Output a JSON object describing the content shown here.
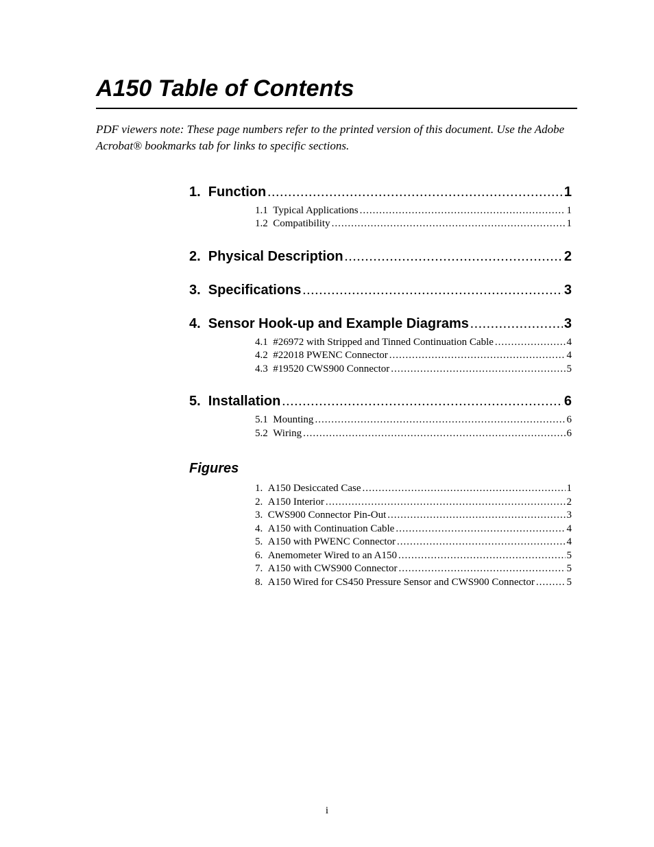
{
  "title": "A150 Table of Contents",
  "note": "PDF viewers note:  These page numbers refer to the printed version of this document.  Use the Adobe Acrobat® bookmarks tab for links to specific sections.",
  "sections": [
    {
      "num": "1.",
      "title": "Function",
      "page": "1",
      "subs": [
        {
          "num": "1.1",
          "title": "Typical Applications",
          "page": "1"
        },
        {
          "num": "1.2",
          "title": "Compatibility",
          "page": "1"
        }
      ]
    },
    {
      "num": "2.",
      "title": "Physical Description",
      "page": "2",
      "subs": []
    },
    {
      "num": "3.",
      "title": "Specifications",
      "page": "3",
      "subs": []
    },
    {
      "num": "4.",
      "title": "Sensor Hook-up and Example Diagrams",
      "page": "3",
      "subs": [
        {
          "num": "4.1",
          "title": "#26972 with Stripped and Tinned Continuation Cable",
          "page": "4"
        },
        {
          "num": "4.2",
          "title": "#22018 PWENC Connector",
          "page": "4"
        },
        {
          "num": "4.3",
          "title": "#19520 CWS900 Connector",
          "page": "5"
        }
      ]
    },
    {
      "num": "5.",
      "title": "Installation",
      "page": "6",
      "subs": [
        {
          "num": "5.1",
          "title": "Mounting",
          "page": "6"
        },
        {
          "num": "5.2",
          "title": "Wiring",
          "page": "6"
        }
      ]
    }
  ],
  "figuresHeading": "Figures",
  "figures": [
    {
      "num": "1.",
      "title": "A150 Desiccated Case",
      "page": "1"
    },
    {
      "num": "2.",
      "title": "A150 Interior",
      "page": "2"
    },
    {
      "num": "3.",
      "title": "CWS900 Connector Pin-Out",
      "page": "3"
    },
    {
      "num": "4.",
      "title": "A150 with Continuation Cable",
      "page": "4"
    },
    {
      "num": "5.",
      "title": "A150 with PWENC Connector",
      "page": "4"
    },
    {
      "num": "6.",
      "title": "Anemometer Wired to an A150",
      "page": "5"
    },
    {
      "num": "7.",
      "title": "A150 with CWS900 Connector",
      "page": "5"
    },
    {
      "num": "8.",
      "title": "A150 Wired for CS450 Pressure Sensor and CWS900 Connector",
      "page": "5"
    }
  ],
  "pageNumber": "i",
  "leaderDots": "................................................................................................................................................................"
}
